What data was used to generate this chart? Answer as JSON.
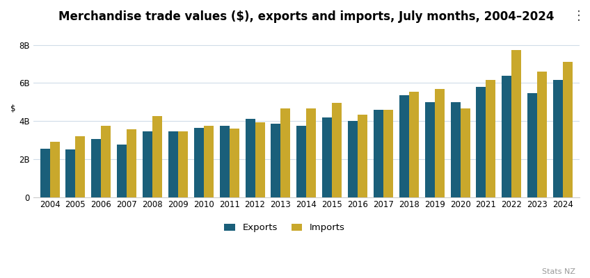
{
  "title": "Merchandise trade values ($), exports and imports, July months, 2004–2024",
  "ylabel": "$",
  "watermark": "Stats NZ",
  "years": [
    2004,
    2005,
    2006,
    2007,
    2008,
    2009,
    2010,
    2011,
    2012,
    2013,
    2014,
    2015,
    2016,
    2017,
    2018,
    2019,
    2020,
    2021,
    2022,
    2023,
    2024
  ],
  "exports": [
    2.55,
    2.5,
    3.05,
    2.75,
    3.45,
    3.45,
    3.65,
    3.75,
    4.1,
    3.85,
    3.75,
    4.2,
    4.0,
    4.6,
    5.35,
    5.0,
    5.0,
    5.8,
    6.4,
    5.45,
    6.15
  ],
  "imports": [
    2.9,
    3.2,
    3.75,
    3.55,
    4.25,
    3.45,
    3.75,
    3.6,
    3.95,
    4.65,
    4.65,
    4.95,
    4.35,
    4.6,
    5.55,
    5.7,
    4.65,
    6.15,
    7.75,
    6.6,
    7.1
  ],
  "export_color": "#1a5f7a",
  "import_color": "#c9a82c",
  "background_color": "#ffffff",
  "grid_color": "#d0dce8",
  "ylim": [
    0,
    8.8
  ],
  "yticks": [
    0,
    2,
    4,
    6,
    8
  ],
  "ytick_labels": [
    "0",
    "2B",
    "4B",
    "6B",
    "8B"
  ],
  "bar_width": 0.38,
  "legend_export": "Exports",
  "legend_import": "Imports",
  "title_fontsize": 12,
  "axis_fontsize": 8.5,
  "legend_fontsize": 9.5
}
